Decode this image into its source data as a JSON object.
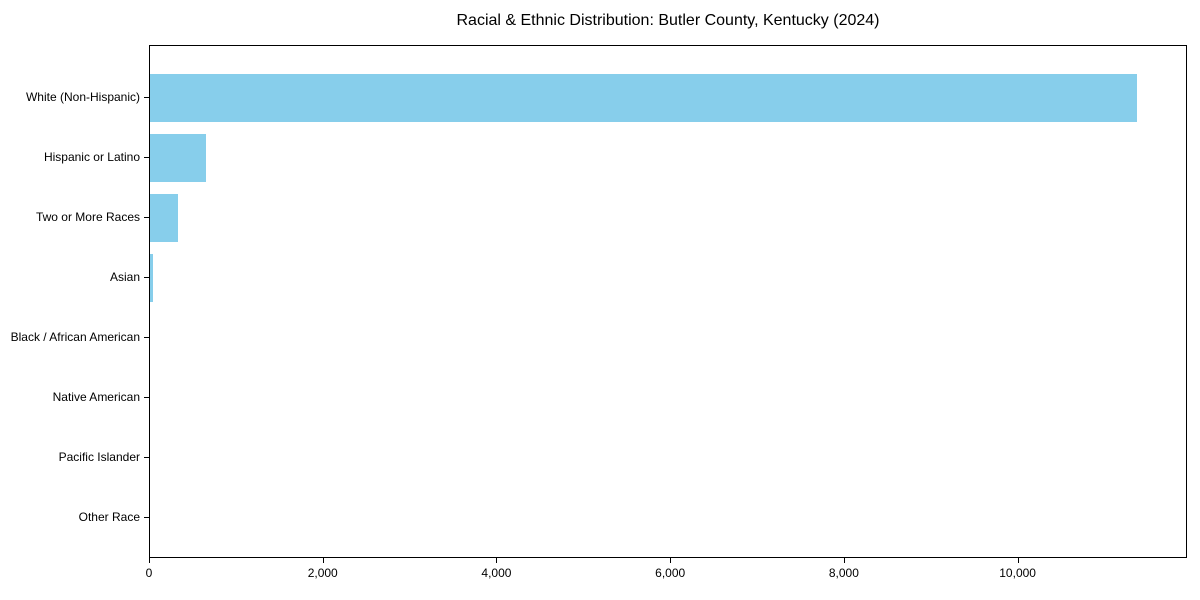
{
  "chart_data": {
    "type": "bar",
    "orientation": "horizontal",
    "title": "Racial & Ethnic Distribution: Butler County, Kentucky (2024)",
    "categories": [
      "White (Non-Hispanic)",
      "Hispanic or Latino",
      "Two or More Races",
      "Asian",
      "Black / African American",
      "Native American",
      "Pacific Islander",
      "Other Race"
    ],
    "values": [
      11360,
      645,
      320,
      40,
      0,
      0,
      0,
      0
    ],
    "xlabel": "",
    "ylabel": "",
    "xlim": [
      0,
      11950
    ],
    "xticks": [
      0,
      2000,
      4000,
      6000,
      8000,
      10000
    ],
    "xtick_labels": [
      "0",
      "2,000",
      "4,000",
      "6,000",
      "8,000",
      "10,000"
    ],
    "bar_color": "#87CEEB",
    "spine_color": "#000000",
    "text_color": "#000000",
    "grid": false,
    "legend": false
  }
}
